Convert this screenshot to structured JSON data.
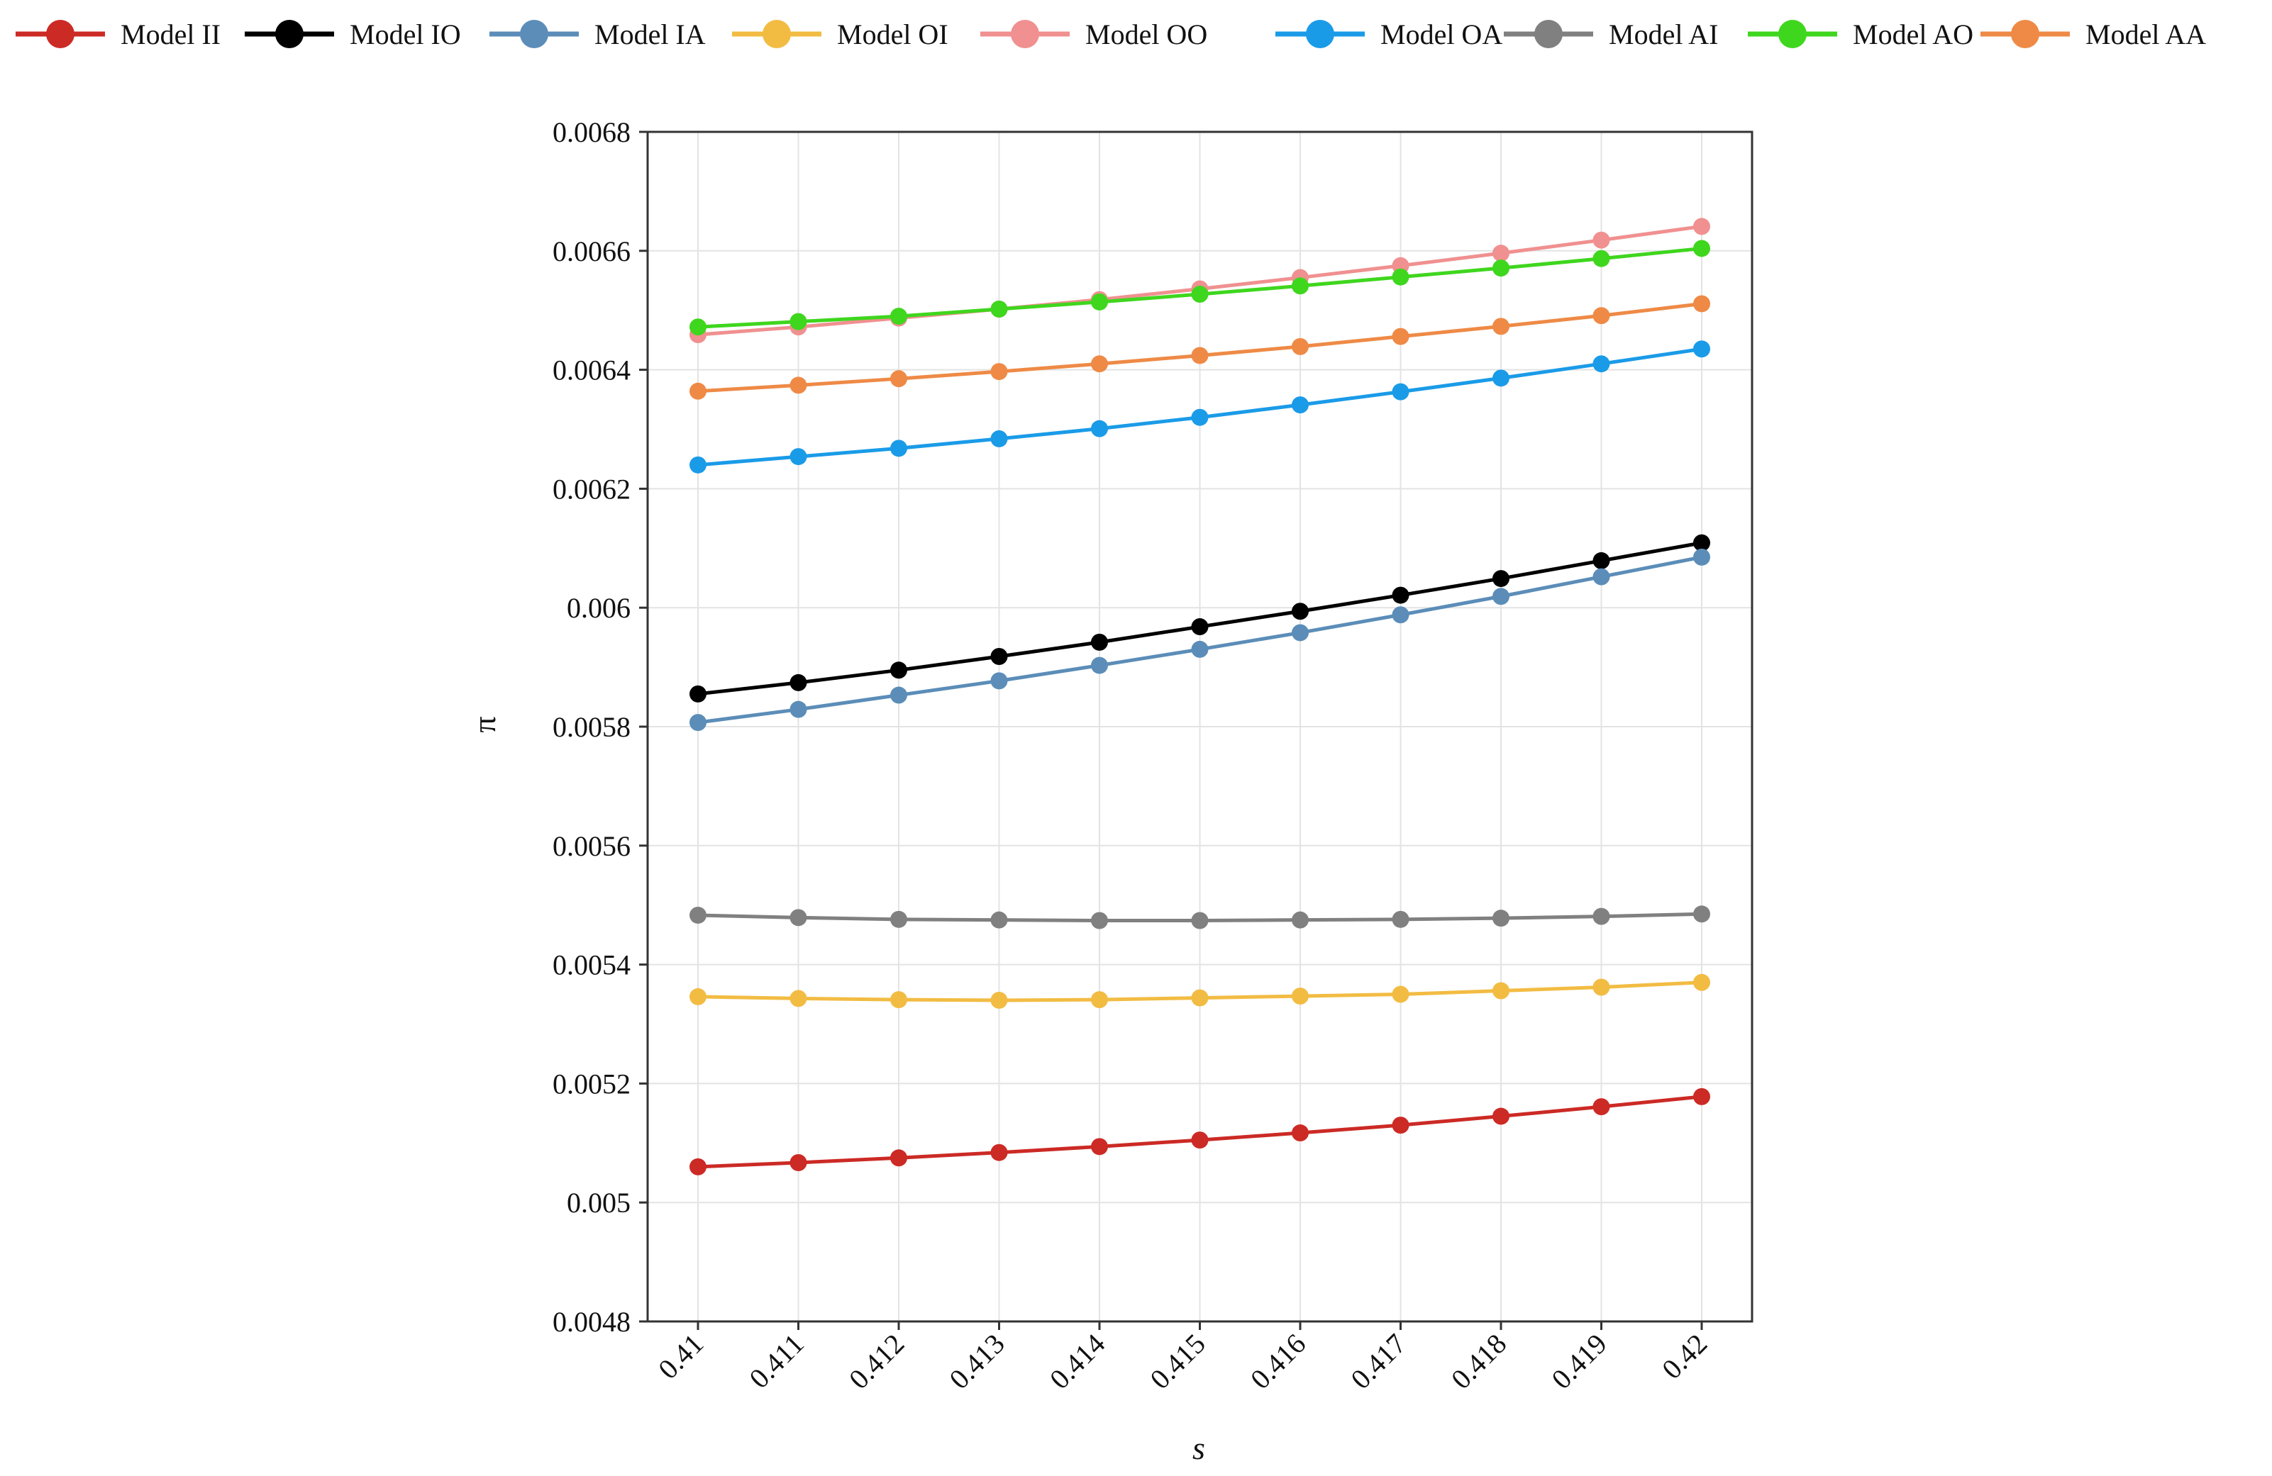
{
  "chart_data": {
    "type": "line",
    "title": "",
    "xlabel": "s",
    "ylabel": "π",
    "x": [
      0.41,
      0.411,
      0.412,
      0.413,
      0.414,
      0.415,
      0.416,
      0.417,
      0.418,
      0.419,
      0.42
    ],
    "x_tick_labels": [
      "0.41",
      "0.411",
      "0.412",
      "0.413",
      "0.414",
      "0.415",
      "0.416",
      "0.417",
      "0.418",
      "0.419",
      "0.42"
    ],
    "ylim": [
      0.0048,
      0.0068
    ],
    "y_ticks": [
      0.0048,
      0.005,
      0.0052,
      0.0054,
      0.0056,
      0.0058,
      0.006,
      0.0062,
      0.0064,
      0.0066,
      0.0068
    ],
    "y_tick_labels": [
      "0.0048",
      "0.005",
      "0.0052",
      "0.0054",
      "0.0056",
      "0.0058",
      "0.006",
      "0.0062",
      "0.0064",
      "0.0066",
      "0.0068"
    ],
    "grid": true,
    "legend_position": "top",
    "series": [
      {
        "name": "Model II",
        "color": "#cc2a25",
        "values": [
          0.00506,
          0.005067,
          0.005075,
          0.005084,
          0.005094,
          0.005105,
          0.005117,
          0.00513,
          0.005145,
          0.005161,
          0.005178
        ]
      },
      {
        "name": "Model IO",
        "color": "#000000",
        "values": [
          0.005855,
          0.005874,
          0.005895,
          0.005918,
          0.005942,
          0.005968,
          0.005994,
          0.006021,
          0.006049,
          0.006079,
          0.006109
        ]
      },
      {
        "name": "Model IA",
        "color": "#5b8db8",
        "values": [
          0.005807,
          0.005829,
          0.005853,
          0.005877,
          0.005903,
          0.00593,
          0.005958,
          0.005988,
          0.006019,
          0.006052,
          0.006085
        ]
      },
      {
        "name": "Model OI",
        "color": "#f2bc43",
        "values": [
          0.005346,
          0.005343,
          0.005341,
          0.00534,
          0.005341,
          0.005344,
          0.005347,
          0.00535,
          0.005356,
          0.005362,
          0.00537
        ]
      },
      {
        "name": "Model OO",
        "color": "#f09090",
        "values": [
          0.006459,
          0.006472,
          0.006487,
          0.006502,
          0.006518,
          0.006536,
          0.006555,
          0.006575,
          0.006596,
          0.006618,
          0.006641
        ]
      },
      {
        "name": "Model OA",
        "color": "#1a9be8",
        "values": [
          0.00624,
          0.006254,
          0.006268,
          0.006284,
          0.006301,
          0.00632,
          0.006341,
          0.006363,
          0.006386,
          0.00641,
          0.006435
        ]
      },
      {
        "name": "Model AI",
        "color": "#808080",
        "values": [
          0.005483,
          0.005479,
          0.005476,
          0.005475,
          0.005474,
          0.005474,
          0.005475,
          0.005476,
          0.005478,
          0.005481,
          0.005485
        ]
      },
      {
        "name": "Model AO",
        "color": "#3fd61e",
        "values": [
          0.006472,
          0.006481,
          0.00649,
          0.006502,
          0.006514,
          0.006527,
          0.006541,
          0.006556,
          0.006571,
          0.006587,
          0.006604
        ]
      },
      {
        "name": "Model AA",
        "color": "#ee8a46",
        "values": [
          0.006364,
          0.006374,
          0.006385,
          0.006397,
          0.00641,
          0.006424,
          0.006439,
          0.006456,
          0.006473,
          0.006491,
          0.006511
        ]
      }
    ]
  }
}
